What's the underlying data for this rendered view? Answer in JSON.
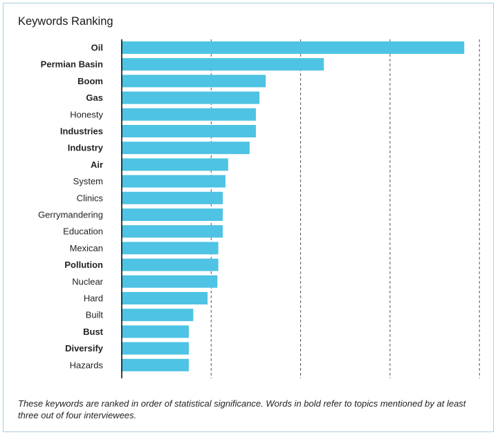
{
  "title": "Keywords Ranking",
  "footnote": "These keywords are ranked in order of statistical significance. Words in bold refer to topics mentioned by at least three out of four interviewees.",
  "colors": {
    "bar": "#4ec3e3",
    "gridline": "#555555",
    "axis": "#000000"
  },
  "chart_data": {
    "type": "bar",
    "orientation": "horizontal",
    "title": "Keywords Ranking",
    "categories": [
      "Oil",
      "Permian Basin",
      "Boom",
      "Gas",
      "Honesty",
      "Industries",
      "Industry",
      "Air",
      "System",
      "Clinics",
      "Gerrymandering",
      "Education",
      "Mexican",
      "Pollution",
      "Nuclear",
      "Hard",
      "Built",
      "Bust",
      "Diversify",
      "Hazards"
    ],
    "bold": [
      true,
      true,
      true,
      true,
      false,
      true,
      true,
      true,
      false,
      false,
      false,
      false,
      false,
      true,
      false,
      false,
      false,
      true,
      true,
      false
    ],
    "values": [
      3.83,
      2.26,
      1.61,
      1.54,
      1.5,
      1.5,
      1.43,
      1.19,
      1.16,
      1.13,
      1.13,
      1.13,
      1.08,
      1.08,
      1.07,
      0.96,
      0.8,
      0.75,
      0.75,
      0.75
    ],
    "xlim": [
      0,
      4
    ],
    "gridlines_x": [
      1,
      2,
      3,
      4
    ],
    "grid": "vertical dashed",
    "tick_labels_shown": false
  }
}
